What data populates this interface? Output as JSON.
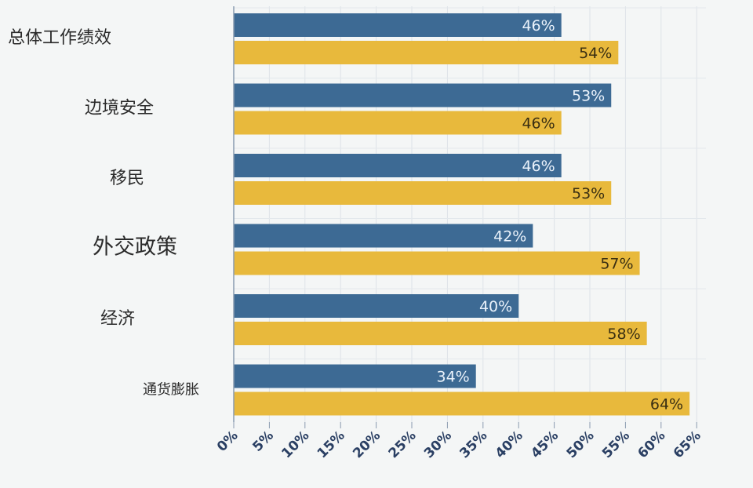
{
  "chart_data": {
    "type": "bar",
    "orientation": "horizontal",
    "categories": [
      "总体工作绩效",
      "边境安全",
      "移民",
      "外交政策",
      "经济",
      "通货膨胀"
    ],
    "series": [
      {
        "values": [
          46,
          53,
          46,
          42,
          40,
          34
        ],
        "labels": [
          "46%",
          "53%",
          "46%",
          "42%",
          "40%",
          "34%"
        ],
        "color": "#3d6a94"
      },
      {
        "values": [
          54,
          46,
          53,
          57,
          58,
          64
        ],
        "labels": [
          "54%",
          "46%",
          "53%",
          "57%",
          "58%",
          "64%"
        ],
        "color": "#e8b93c"
      }
    ],
    "xticks": [
      "0%",
      "5%",
      "10%",
      "15%",
      "20%",
      "25%",
      "30%",
      "35%",
      "40%",
      "45%",
      "50%",
      "55%",
      "60%",
      "65%"
    ],
    "xlim": [
      0,
      65
    ],
    "grid": true,
    "legend": "none"
  }
}
